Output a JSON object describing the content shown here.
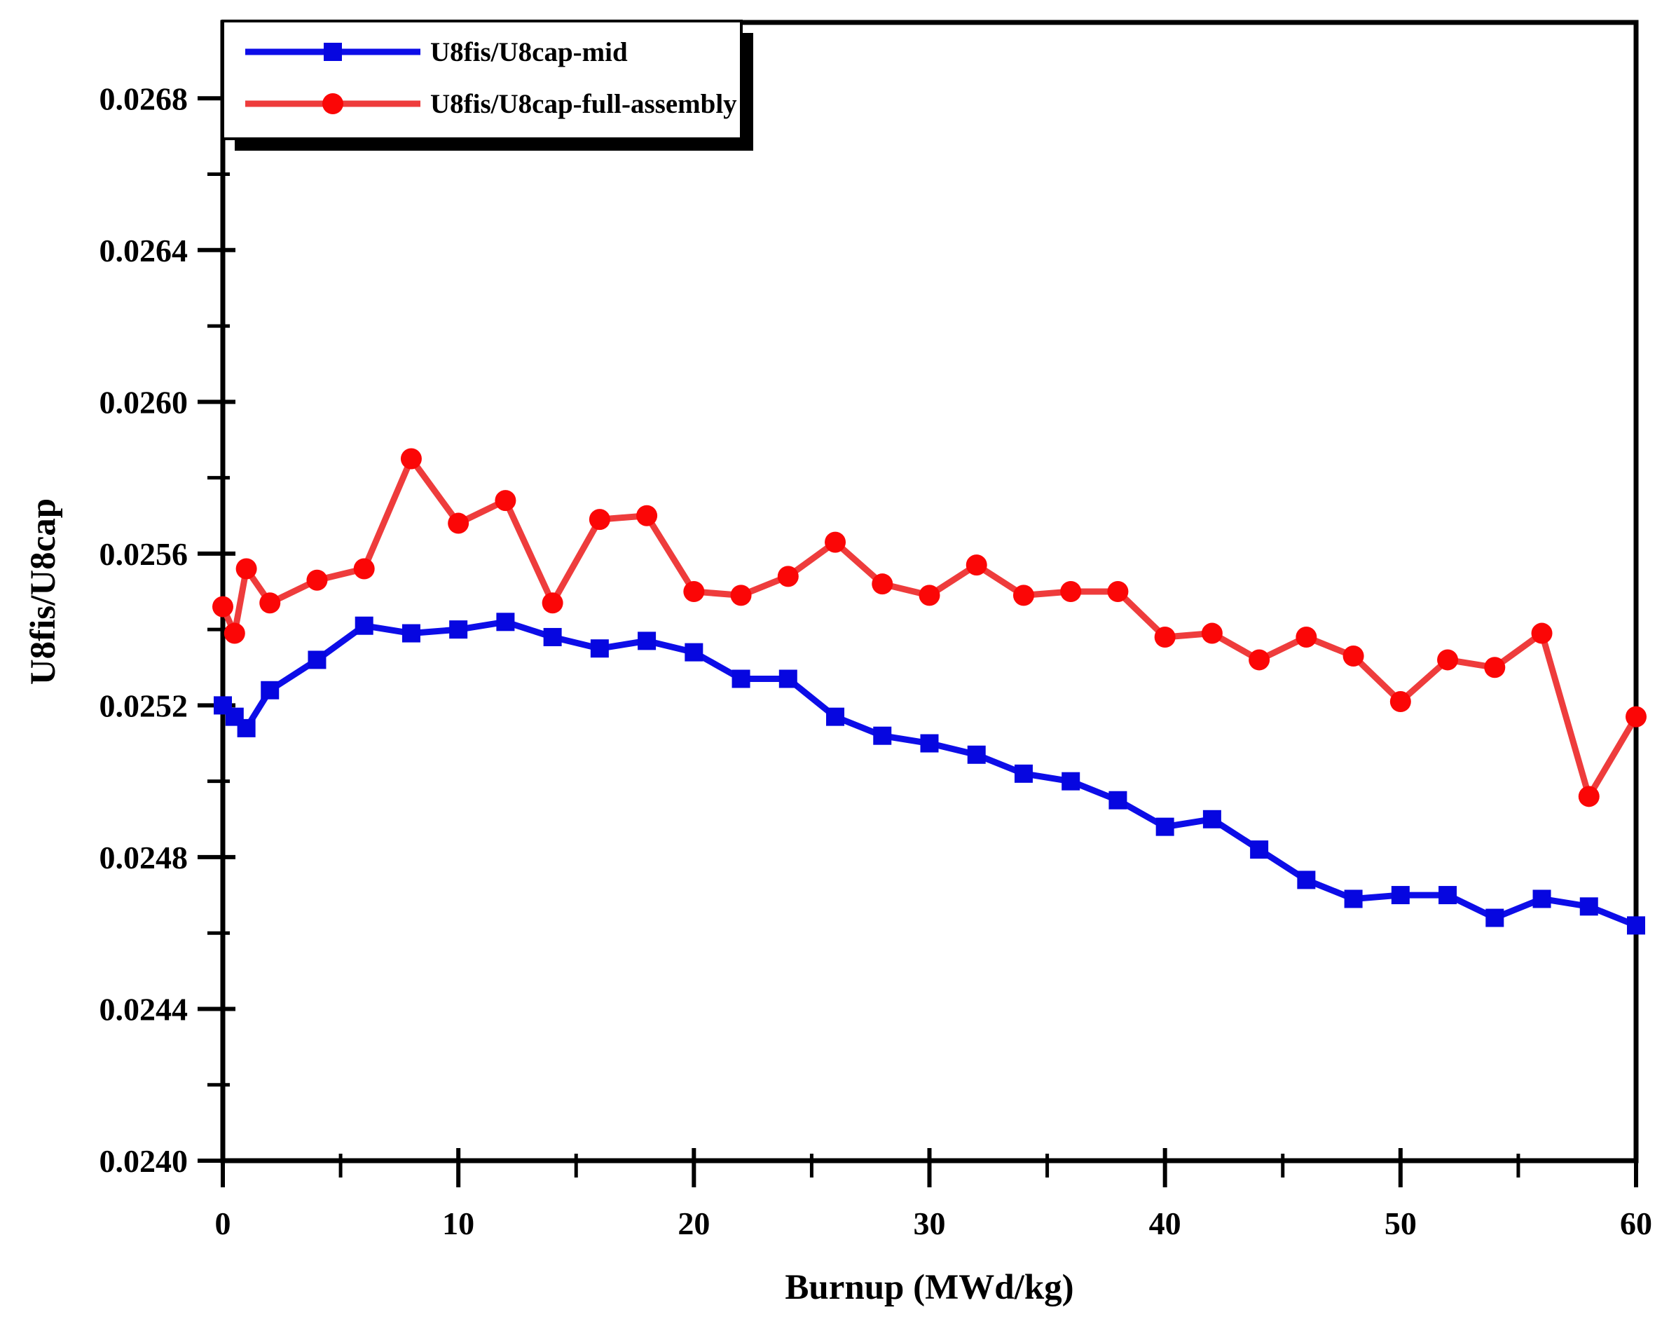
{
  "page": {
    "background": "#ffffff"
  },
  "chart_data": {
    "type": "line",
    "title": "",
    "xlabel": "Burnup (MWd/kg)",
    "ylabel": "U8fis/U8cap",
    "xlim": [
      0,
      60
    ],
    "ylim": [
      0.024,
      0.027
    ],
    "grid": false,
    "legend_position": "top-left",
    "x_major_ticks": [
      0,
      10,
      20,
      30,
      40,
      50,
      60
    ],
    "x_major_tick_labels": [
      "0",
      "10",
      "20",
      "30",
      "40",
      "50",
      "60"
    ],
    "x_minor_ticks": [
      5,
      15,
      25,
      35,
      45,
      55
    ],
    "y_major_ticks": [
      0.024,
      0.0244,
      0.0248,
      0.0252,
      0.0256,
      0.026,
      0.0264,
      0.0268
    ],
    "y_major_tick_labels": [
      "0.0240",
      "0.0244",
      "0.0248",
      "0.0252",
      "0.0256",
      "0.0260",
      "0.0264",
      "0.0268"
    ],
    "y_minor_ticks": [
      0.0242,
      0.0246,
      0.025,
      0.0254,
      0.0258,
      0.0262,
      0.0266
    ],
    "x": [
      0,
      0.5,
      1,
      2,
      4,
      6,
      8,
      10,
      12,
      14,
      16,
      18,
      20,
      22,
      24,
      26,
      28,
      30,
      32,
      34,
      36,
      38,
      40,
      42,
      44,
      46,
      48,
      50,
      52,
      54,
      56,
      58,
      60
    ],
    "series": [
      {
        "name": "U8fis/U8cap-mid",
        "marker": "square",
        "line_color": "#0d0de8",
        "marker_color": "#0606e0",
        "values": [
          0.0252,
          0.02517,
          0.02514,
          0.02524,
          0.02532,
          0.02541,
          0.02539,
          0.0254,
          0.02542,
          0.02538,
          0.02535,
          0.02537,
          0.02534,
          0.02527,
          0.02527,
          0.02517,
          0.02512,
          0.0251,
          0.02507,
          0.02502,
          0.025,
          0.02495,
          0.02488,
          0.0249,
          0.02482,
          0.02474,
          0.02469,
          0.0247,
          0.0247,
          0.02464,
          0.02469,
          0.02467,
          0.02462
        ]
      },
      {
        "name": "U8fis/U8cap-full-assembly",
        "marker": "circle",
        "line_color": "#ee3c3c",
        "marker_color": "#fb0606",
        "values": [
          0.02546,
          0.02539,
          0.02556,
          0.02547,
          0.02553,
          0.02556,
          0.02585,
          0.02568,
          0.02574,
          0.02547,
          0.02569,
          0.0257,
          0.0255,
          0.02549,
          0.02554,
          0.02563,
          0.02552,
          0.02549,
          0.02557,
          0.02549,
          0.0255,
          0.0255,
          0.02538,
          0.02539,
          0.02532,
          0.02538,
          0.02533,
          0.02521,
          0.02532,
          0.0253,
          0.02539,
          0.02496,
          0.02517
        ]
      }
    ],
    "axis_color": "#000000"
  }
}
